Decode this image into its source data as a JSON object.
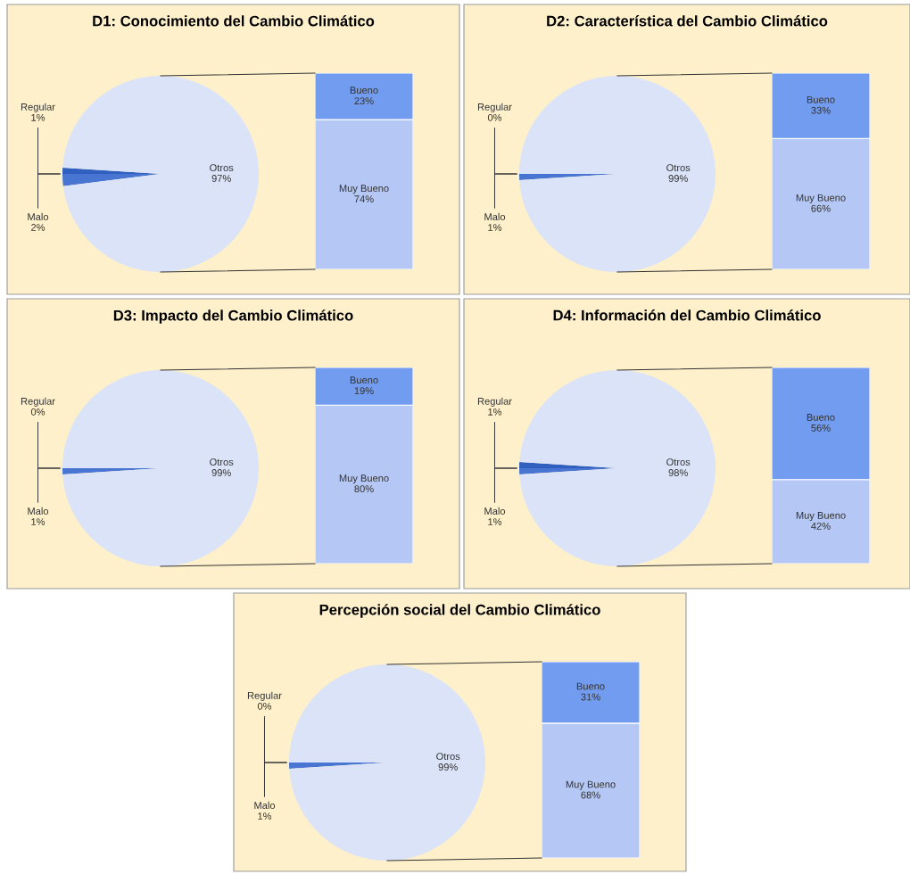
{
  "chart_data": [
    {
      "type": "pie",
      "title": "D1: Conocimiento del Cambio Climático",
      "categories": [
        "Regular",
        "Malo",
        "Otros"
      ],
      "values": [
        1,
        2,
        97
      ],
      "value_labels": [
        "1%",
        "2%",
        "97%"
      ],
      "colors": [
        "#2f5fbf",
        "#4775d1",
        "#dae3f8"
      ]
    },
    {
      "type": "bar",
      "stacked": true,
      "categories": [
        null
      ],
      "series": [
        {
          "name": "Muy Bueno",
          "color": "#b4c7f5",
          "values": [
            74
          ],
          "value_labels": [
            "74%"
          ]
        },
        {
          "name": "Bueno",
          "color": "#729cf0",
          "values": [
            23
          ],
          "value_labels": [
            "23%"
          ]
        }
      ]
    },
    {
      "type": "pie",
      "title": "D2: Característica del Cambio Climático",
      "categories": [
        "Regular",
        "Malo",
        "Otros"
      ],
      "values": [
        0,
        1,
        99
      ],
      "value_labels": [
        "0%",
        "1%",
        "99%"
      ],
      "colors": [
        "#2f5fbf",
        "#4775d1",
        "#dae3f8"
      ]
    },
    {
      "type": "bar",
      "stacked": true,
      "categories": [
        null
      ],
      "series": [
        {
          "name": "Muy Bueno",
          "color": "#b4c7f5",
          "values": [
            66
          ],
          "value_labels": [
            "66%"
          ]
        },
        {
          "name": "Bueno",
          "color": "#729cf0",
          "values": [
            33
          ],
          "value_labels": [
            "33%"
          ]
        }
      ]
    },
    {
      "type": "pie",
      "title": "D3: Impacto del Cambio Climático",
      "categories": [
        "Regular",
        "Malo",
        "Otros"
      ],
      "values": [
        0,
        1,
        99
      ],
      "value_labels": [
        "0%",
        "1%",
        "99%"
      ],
      "colors": [
        "#2f5fbf",
        "#4775d1",
        "#dae3f8"
      ]
    },
    {
      "type": "bar",
      "stacked": true,
      "categories": [
        null
      ],
      "series": [
        {
          "name": "Muy Bueno",
          "color": "#b4c7f5",
          "values": [
            80
          ],
          "value_labels": [
            "80%"
          ]
        },
        {
          "name": "Bueno",
          "color": "#729cf0",
          "values": [
            19
          ],
          "value_labels": [
            "19%"
          ]
        }
      ]
    },
    {
      "type": "pie",
      "title": "D4: Información del Cambio Climático",
      "categories": [
        "Regular",
        "Malo",
        "Otros"
      ],
      "values": [
        1,
        1,
        98
      ],
      "value_labels": [
        "1%",
        "1%",
        "98%"
      ],
      "colors": [
        "#2f5fbf",
        "#4775d1",
        "#dae3f8"
      ]
    },
    {
      "type": "bar",
      "stacked": true,
      "categories": [
        null
      ],
      "series": [
        {
          "name": "Muy Bueno",
          "color": "#b4c7f5",
          "values": [
            42
          ],
          "value_labels": [
            "42%"
          ]
        },
        {
          "name": "Bueno",
          "color": "#729cf0",
          "values": [
            56
          ],
          "value_labels": [
            "56%"
          ]
        }
      ]
    },
    {
      "type": "pie",
      "title": "Percepción social del Cambio Climático",
      "categories": [
        "Regular",
        "Malo",
        "Otros"
      ],
      "values": [
        0,
        1,
        99
      ],
      "value_labels": [
        "0%",
        "1%",
        "99%"
      ],
      "colors": [
        "#2f5fbf",
        "#4775d1",
        "#dae3f8"
      ]
    },
    {
      "type": "bar",
      "stacked": true,
      "categories": [
        null
      ],
      "series": [
        {
          "name": "Muy Bueno",
          "color": "#b4c7f5",
          "values": [
            68
          ],
          "value_labels": [
            "68%"
          ]
        },
        {
          "name": "Bueno",
          "color": "#729cf0",
          "values": [
            31
          ],
          "value_labels": [
            "31%"
          ]
        }
      ]
    }
  ]
}
